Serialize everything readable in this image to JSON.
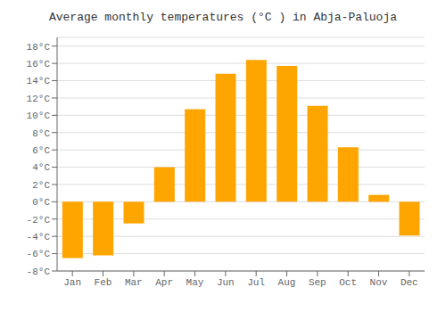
{
  "chart_data": {
    "type": "bar",
    "title": "Average monthly temperatures (°C ) in Abja-Paluoja",
    "categories": [
      "Jan",
      "Feb",
      "Mar",
      "Apr",
      "May",
      "Jun",
      "Jul",
      "Aug",
      "Sep",
      "Oct",
      "Nov",
      "Dec"
    ],
    "values": [
      -6.5,
      -6.2,
      -2.5,
      4.0,
      10.7,
      14.8,
      16.4,
      15.7,
      11.1,
      6.3,
      0.8,
      -3.9
    ],
    "color": "#FFA500",
    "ylim": [
      -8,
      19
    ],
    "yticks": [
      {
        "value": -8,
        "label": "-8°C"
      },
      {
        "value": -6,
        "label": "-6°C"
      },
      {
        "value": -4,
        "label": "-4°C"
      },
      {
        "value": -2,
        "label": "-2°C"
      },
      {
        "value": 0,
        "label": "0°C"
      },
      {
        "value": 2,
        "label": "2°C"
      },
      {
        "value": 4,
        "label": "4°C"
      },
      {
        "value": 6,
        "label": "6°C"
      },
      {
        "value": 8,
        "label": "8°C"
      },
      {
        "value": 10,
        "label": "10°C"
      },
      {
        "value": 12,
        "label": "12°C"
      },
      {
        "value": 14,
        "label": "14°C"
      },
      {
        "value": 16,
        "label": "16°C"
      },
      {
        "value": 18,
        "label": "18°C"
      }
    ],
    "grid": true
  }
}
